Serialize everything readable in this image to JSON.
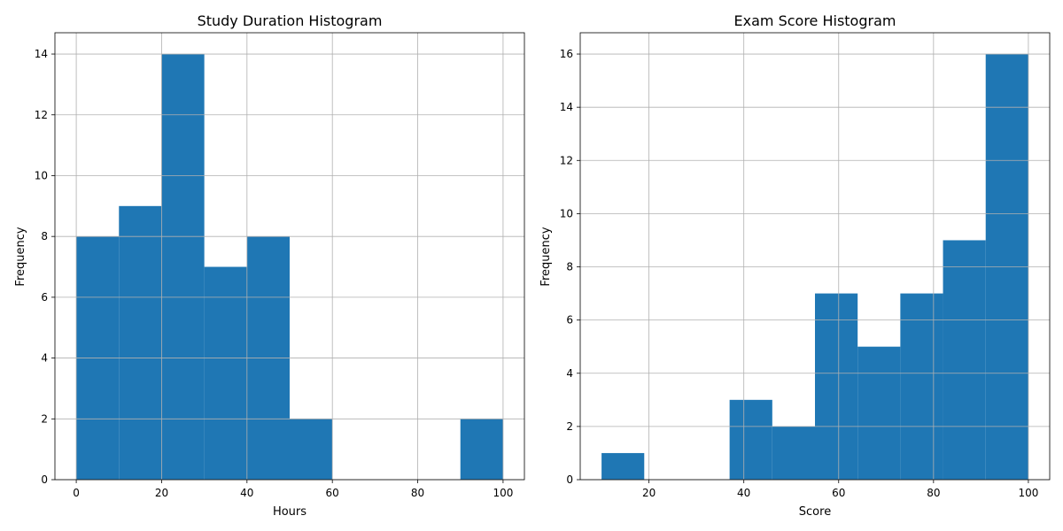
{
  "chart_data": [
    {
      "type": "bar",
      "title": "Study Duration Histogram",
      "xlabel": "Hours",
      "ylabel": "Frequency",
      "bins": [
        [
          0,
          10
        ],
        [
          10,
          20
        ],
        [
          20,
          30
        ],
        [
          30,
          40
        ],
        [
          40,
          50
        ],
        [
          50,
          60
        ],
        [
          60,
          70
        ],
        [
          70,
          80
        ],
        [
          80,
          90
        ],
        [
          90,
          100
        ]
      ],
      "values": [
        8,
        9,
        14,
        7,
        8,
        2,
        0,
        0,
        0,
        2
      ],
      "xlim": [
        -5,
        105
      ],
      "ylim": [
        0,
        14.7
      ],
      "xticks": [
        0,
        20,
        40,
        60,
        80,
        100
      ],
      "yticks": [
        0,
        2,
        4,
        6,
        8,
        10,
        12,
        14
      ],
      "grid": true,
      "color": "#1f77b4"
    },
    {
      "type": "bar",
      "title": "Exam Score Histogram",
      "xlabel": "Score",
      "ylabel": "Frequency",
      "bins": [
        [
          10,
          19
        ],
        [
          19,
          28
        ],
        [
          28,
          37
        ],
        [
          37,
          46
        ],
        [
          46,
          55
        ],
        [
          55,
          64
        ],
        [
          64,
          73
        ],
        [
          73,
          82
        ],
        [
          82,
          91
        ],
        [
          91,
          100
        ]
      ],
      "values": [
        1,
        0,
        0,
        3,
        2,
        7,
        5,
        7,
        9,
        16
      ],
      "xlim": [
        5.5,
        104.5
      ],
      "ylim": [
        0,
        16.8
      ],
      "xticks": [
        20,
        40,
        60,
        80,
        100
      ],
      "yticks": [
        0,
        2,
        4,
        6,
        8,
        10,
        12,
        14,
        16
      ],
      "grid": true,
      "color": "#1f77b4"
    }
  ]
}
